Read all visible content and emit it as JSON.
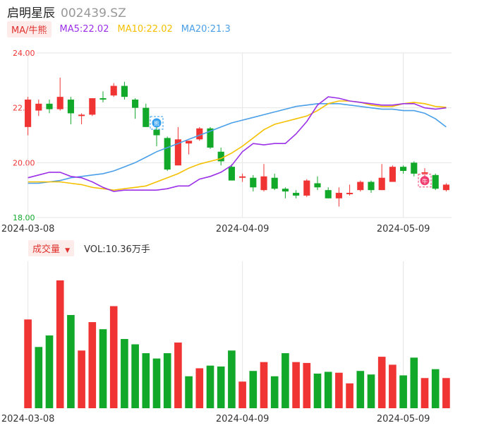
{
  "header": {
    "name": "启明星辰",
    "code": "002439.SZ"
  },
  "ma_legend": {
    "tag": "MA/牛熊",
    "ma5": "MA5:22.02",
    "ma10": "MA10:22.02",
    "ma20": "MA20:21.3",
    "ma5_color": "#9b30e8",
    "ma10_color": "#f5c000",
    "ma20_color": "#4a9fe8"
  },
  "volume_legend": {
    "tag": "成交量",
    "arrow": "▼",
    "value": "VOL:10.36万手"
  },
  "colors": {
    "up": "#f03434",
    "down": "#12a82a",
    "grid": "#e6e6e6"
  },
  "chart_data": [
    {
      "type": "candlestick",
      "ylim": [
        18,
        24
      ],
      "y_ticks": [
        "24.00",
        "22.0",
        "20.00",
        "18.00"
      ],
      "y_tick_values": [
        24,
        22,
        20,
        18
      ],
      "x_labels": [
        "2024-03-08",
        "2024-04-09",
        "2024-05-09"
      ],
      "x_label_index": [
        0,
        20,
        35
      ],
      "candles": [
        {
          "o": 21.3,
          "h": 22.4,
          "l": 21.0,
          "c": 22.3
        },
        {
          "o": 21.9,
          "h": 22.3,
          "l": 21.7,
          "c": 22.15
        },
        {
          "o": 22.15,
          "h": 22.3,
          "l": 21.8,
          "c": 21.95
        },
        {
          "o": 21.95,
          "h": 23.1,
          "l": 21.9,
          "c": 22.4
        },
        {
          "o": 22.3,
          "h": 22.4,
          "l": 21.4,
          "c": 21.8
        },
        {
          "o": 21.7,
          "h": 21.8,
          "l": 21.4,
          "c": 21.75
        },
        {
          "o": 21.75,
          "h": 22.35,
          "l": 21.7,
          "c": 22.35
        },
        {
          "o": 22.35,
          "h": 22.6,
          "l": 22.2,
          "c": 22.3
        },
        {
          "o": 22.45,
          "h": 22.9,
          "l": 22.4,
          "c": 22.8
        },
        {
          "o": 22.8,
          "h": 22.95,
          "l": 22.3,
          "c": 22.4
        },
        {
          "o": 22.3,
          "h": 22.35,
          "l": 21.6,
          "c": 22.0
        },
        {
          "o": 22.0,
          "h": 22.15,
          "l": 21.3,
          "c": 21.3
        },
        {
          "o": 21.2,
          "h": 21.4,
          "l": 20.6,
          "c": 21.0
        },
        {
          "o": 20.9,
          "h": 20.95,
          "l": 19.7,
          "c": 19.75
        },
        {
          "o": 19.9,
          "h": 21.3,
          "l": 19.9,
          "c": 20.85
        },
        {
          "o": 20.7,
          "h": 20.8,
          "l": 20.3,
          "c": 20.8
        },
        {
          "o": 20.85,
          "h": 21.3,
          "l": 20.8,
          "c": 21.25
        },
        {
          "o": 21.25,
          "h": 21.3,
          "l": 20.5,
          "c": 20.55
        },
        {
          "o": 20.4,
          "h": 20.55,
          "l": 19.9,
          "c": 20.05
        },
        {
          "o": 19.85,
          "h": 19.95,
          "l": 19.35,
          "c": 19.35
        },
        {
          "o": 19.45,
          "h": 19.6,
          "l": 19.3,
          "c": 19.5
        },
        {
          "o": 19.45,
          "h": 19.55,
          "l": 18.95,
          "c": 19.1
        },
        {
          "o": 19.0,
          "h": 19.95,
          "l": 18.95,
          "c": 19.5
        },
        {
          "o": 19.45,
          "h": 19.6,
          "l": 19.0,
          "c": 19.05
        },
        {
          "o": 19.05,
          "h": 19.1,
          "l": 18.7,
          "c": 18.95
        },
        {
          "o": 18.9,
          "h": 19.0,
          "l": 18.7,
          "c": 18.8
        },
        {
          "o": 18.8,
          "h": 19.4,
          "l": 18.75,
          "c": 19.35
        },
        {
          "o": 19.25,
          "h": 19.5,
          "l": 19.0,
          "c": 19.1
        },
        {
          "o": 19.0,
          "h": 19.1,
          "l": 18.7,
          "c": 18.7
        },
        {
          "o": 18.7,
          "h": 19.1,
          "l": 18.4,
          "c": 18.9
        },
        {
          "o": 18.85,
          "h": 19.2,
          "l": 18.8,
          "c": 18.9
        },
        {
          "o": 19.0,
          "h": 19.35,
          "l": 18.95,
          "c": 19.3
        },
        {
          "o": 19.3,
          "h": 19.35,
          "l": 18.9,
          "c": 19.0
        },
        {
          "o": 19.0,
          "h": 19.95,
          "l": 19.0,
          "c": 19.45
        },
        {
          "o": 19.3,
          "h": 19.9,
          "l": 19.3,
          "c": 19.85
        },
        {
          "o": 19.85,
          "h": 19.9,
          "l": 19.6,
          "c": 19.7
        },
        {
          "o": 20.0,
          "h": 20.05,
          "l": 19.5,
          "c": 19.6
        },
        {
          "o": 19.6,
          "h": 19.8,
          "l": 19.5,
          "c": 19.65
        },
        {
          "o": 19.55,
          "h": 19.6,
          "l": 19.0,
          "c": 19.05
        },
        {
          "o": 19.0,
          "h": 19.25,
          "l": 18.95,
          "c": 19.2
        }
      ],
      "ma5": [
        19.45,
        19.55,
        19.65,
        19.65,
        19.5,
        19.45,
        19.3,
        19.1,
        18.95,
        19.0,
        19.0,
        19.0,
        19.0,
        19.05,
        19.15,
        19.15,
        19.4,
        19.5,
        19.65,
        19.9,
        20.4,
        20.7,
        20.65,
        20.7,
        20.7,
        21.05,
        21.5,
        22.1,
        22.4,
        22.35,
        22.25,
        22.2,
        22.15,
        22.1,
        22.1,
        22.15,
        22.15,
        22.0,
        21.95,
        22.0
      ],
      "ma10": [
        19.3,
        19.3,
        19.3,
        19.3,
        19.25,
        19.2,
        19.1,
        19.05,
        19.0,
        19.05,
        19.1,
        19.15,
        19.3,
        19.45,
        19.6,
        19.8,
        19.95,
        20.05,
        20.15,
        20.35,
        20.6,
        20.9,
        21.2,
        21.4,
        21.5,
        21.6,
        21.7,
        21.9,
        22.15,
        22.25,
        22.25,
        22.2,
        22.1,
        22.05,
        22.05,
        22.15,
        22.2,
        22.15,
        22.05,
        22.02
      ],
      "ma20": [
        19.25,
        19.25,
        19.3,
        19.35,
        19.45,
        19.5,
        19.55,
        19.6,
        19.7,
        19.85,
        20.0,
        20.2,
        20.4,
        20.55,
        20.7,
        20.85,
        21.0,
        21.15,
        21.3,
        21.45,
        21.55,
        21.65,
        21.75,
        21.85,
        21.95,
        22.05,
        22.1,
        22.15,
        22.15,
        22.15,
        22.1,
        22.05,
        22.0,
        21.95,
        21.95,
        21.9,
        21.9,
        21.8,
        21.6,
        21.3
      ],
      "markers": [
        {
          "index": 12,
          "label": "熊"
        },
        {
          "index": 37,
          "label": "牛"
        }
      ]
    },
    {
      "type": "bar",
      "title": "成交量",
      "x_labels": [
        "2024-03-08",
        "2024-04-09",
        "2024-05-09"
      ],
      "x_label_index": [
        0,
        20,
        35
      ],
      "values": [
        100,
        69,
        82,
        144,
        105,
        65,
        97,
        89,
        115,
        78,
        72,
        62,
        56,
        62,
        74,
        36,
        45,
        48,
        47,
        65,
        30,
        42,
        52,
        36,
        62,
        52,
        51,
        39,
        41,
        40,
        28,
        42,
        38,
        58,
        49,
        37,
        57,
        34,
        44,
        34
      ],
      "up": [
        true,
        false,
        false,
        true,
        false,
        true,
        true,
        false,
        true,
        false,
        false,
        false,
        false,
        false,
        true,
        false,
        true,
        false,
        false,
        false,
        true,
        false,
        true,
        false,
        false,
        true,
        true,
        false,
        false,
        true,
        true,
        false,
        false,
        true,
        true,
        false,
        false,
        true,
        false,
        true
      ]
    }
  ]
}
